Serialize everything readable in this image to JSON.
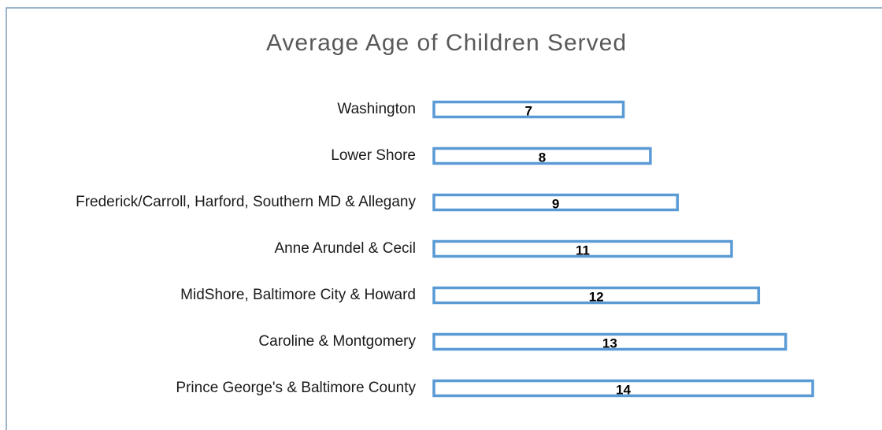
{
  "chart_data": {
    "type": "hbar",
    "title": "Average Age of Children Served",
    "categories": [
      "Washington",
      "Lower Shore",
      "Frederick/Carroll, Harford, Southern MD & Allegany",
      "Anne Arundel & Cecil",
      "MidShore, Baltimore City & Howard",
      "Caroline & Montgomery",
      "Prince George's & Baltimore County"
    ],
    "values": [
      7,
      8,
      9,
      11,
      12,
      13,
      14
    ],
    "color": "#5b9bd5",
    "xlim": [
      0,
      16
    ]
  }
}
